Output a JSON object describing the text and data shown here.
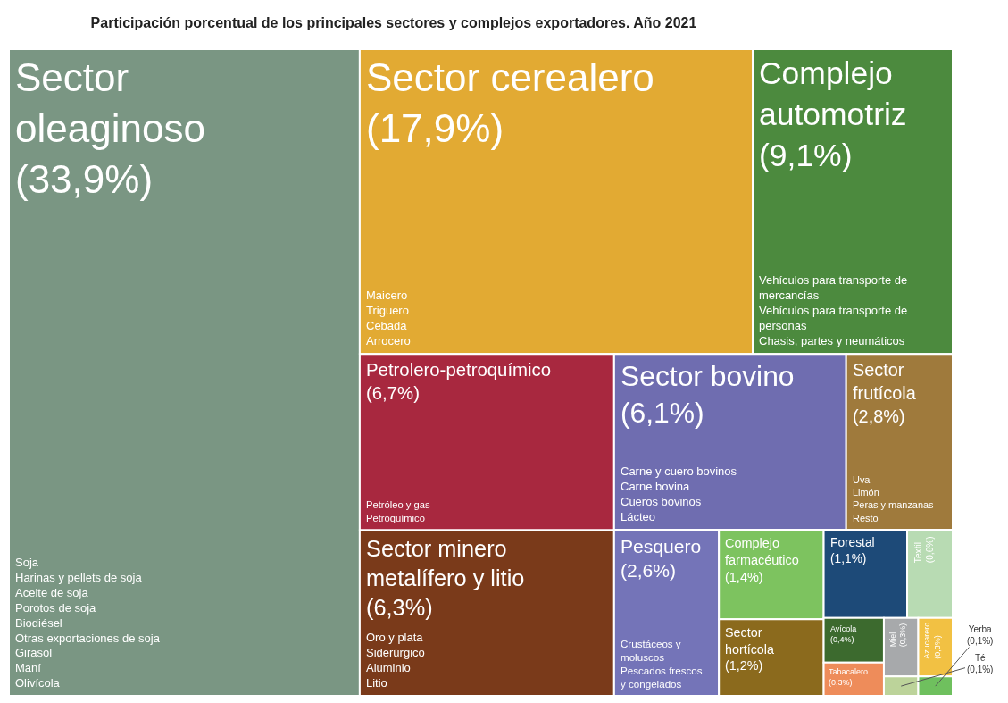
{
  "chart_data": {
    "type": "other",
    "title": "Participación porcentual de los principales sectores y complejos exportadores. Año 2021",
    "categories": [
      "Sector oleaginoso",
      "Sector cerealero",
      "Complejo automotriz",
      "Petrolero-petroquímico",
      "Sector minero metalífero y litio",
      "Sector bovino",
      "Sector frutícola",
      "Pesquero",
      "Complejo farmacéutico",
      "Sector hortícola",
      "Forestal",
      "Textil",
      "Avícola",
      "Tabacalero",
      "Miel",
      "Azucarero",
      "Té",
      "Yerba"
    ],
    "values": [
      33.9,
      17.9,
      9.1,
      6.7,
      6.3,
      6.1,
      2.8,
      2.6,
      1.4,
      1.2,
      1.1,
      0.6,
      0.4,
      0.3,
      0.3,
      0.3,
      0.1,
      0.1
    ],
    "value_labels": [
      "(33,9%)",
      "(17,9%)",
      "(9,1%)",
      "(6,7%)",
      "(6,3%)",
      "(6,1%)",
      "(2,8%)",
      "(2,6%)",
      "(1,4%)",
      "(1,2%)",
      "(1,1%)",
      "(0,6%)",
      "(0,4%)",
      "(0,3%)",
      "(0,3%)",
      "(0,3%)",
      "(0,1%)",
      "(0,1%)"
    ],
    "colors": [
      "#7a9683",
      "#e2aa33",
      "#4c8a3e",
      "#a8283f",
      "#7a3a1a",
      "#6f6db0",
      "#9f7a3c",
      "#7474b8",
      "#7dc35f",
      "#8b6a1d",
      "#1d4a78",
      "#b8dbb3",
      "#3c6a2e",
      "#ee8c5a",
      "#a7a9ab",
      "#f2c143",
      "#bcd39a",
      "#6fc05e"
    ],
    "annotations": [
      {
        "text": "Soja",
        "x": "Sector oleaginoso"
      },
      {
        "text": "Harinas y pellets de soja",
        "x": "Sector oleaginoso"
      },
      {
        "text": "Aceite de soja",
        "x": "Sector oleaginoso"
      },
      {
        "text": "Porotos de soja",
        "x": "Sector oleaginoso"
      },
      {
        "text": "Biodiésel",
        "x": "Sector oleaginoso"
      },
      {
        "text": "Otras exportaciones de soja",
        "x": "Sector oleaginoso"
      },
      {
        "text": "Girasol",
        "x": "Sector oleaginoso"
      },
      {
        "text": "Maní",
        "x": "Sector oleaginoso"
      },
      {
        "text": "Olivícola",
        "x": "Sector oleaginoso"
      },
      {
        "text": "Maicero",
        "x": "Sector cerealero"
      },
      {
        "text": "Triguero",
        "x": "Sector cerealero"
      },
      {
        "text": "Cebada",
        "x": "Sector cerealero"
      },
      {
        "text": "Arrocero",
        "x": "Sector cerealero"
      },
      {
        "text": "Vehículos para transporte de mercancías",
        "x": "Complejo automotriz"
      },
      {
        "text": "Vehículos para transporte de personas",
        "x": "Complejo automotriz"
      },
      {
        "text": "Chasis, partes y neumáticos",
        "x": "Complejo automotriz"
      },
      {
        "text": "Petróleo y gas",
        "x": "Petrolero-petroquímico"
      },
      {
        "text": "Petroquímico",
        "x": "Petrolero-petroquímico"
      },
      {
        "text": "Oro y plata",
        "x": "Sector minero metalífero y litio"
      },
      {
        "text": "Siderúrgico",
        "x": "Sector minero metalífero y litio"
      },
      {
        "text": "Aluminio",
        "x": "Sector minero metalífero y litio"
      },
      {
        "text": "Litio",
        "x": "Sector minero metalífero y litio"
      },
      {
        "text": "Carne y cuero bovinos",
        "x": "Sector bovino"
      },
      {
        "text": "Carne bovina",
        "x": "Sector bovino"
      },
      {
        "text": "Cueros bovinos",
        "x": "Sector bovino"
      },
      {
        "text": "Lácteo",
        "x": "Sector bovino"
      },
      {
        "text": "Uva",
        "x": "Sector frutícola"
      },
      {
        "text": "Limón",
        "x": "Sector frutícola"
      },
      {
        "text": "Peras y manzanas",
        "x": "Sector frutícola"
      },
      {
        "text": "Resto",
        "x": "Sector frutícola"
      },
      {
        "text": "Crustáceos y moluscos",
        "x": "Pesquero"
      },
      {
        "text": "Pescados frescos y congelados",
        "x": "Pesquero"
      }
    ]
  }
}
